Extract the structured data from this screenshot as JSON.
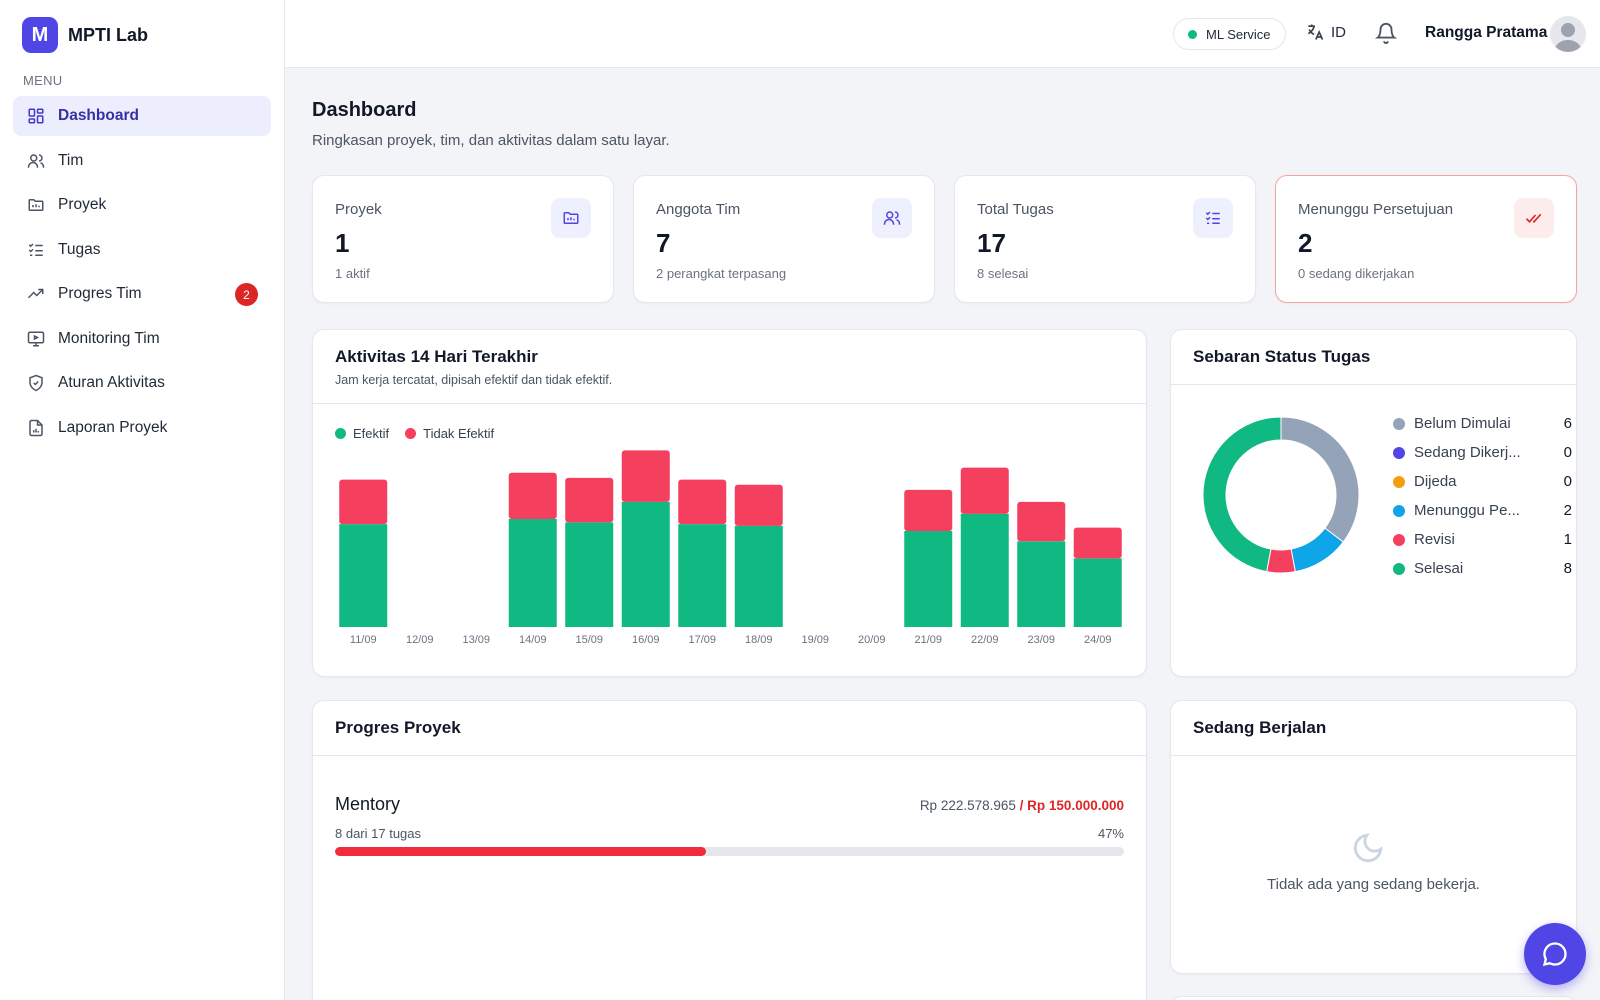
{
  "app": {
    "name": "MPTI Lab",
    "logo_letter": "M"
  },
  "sidebar": {
    "menu_label": "MENU",
    "items": [
      {
        "label": "Dashboard",
        "icon": "dashboard-grid-icon",
        "active": true
      },
      {
        "label": "Tim",
        "icon": "users-icon"
      },
      {
        "label": "Proyek",
        "icon": "folder-icon"
      },
      {
        "label": "Tugas",
        "icon": "checklist-icon"
      },
      {
        "label": "Progres Tim",
        "icon": "trending-up-icon",
        "badge": "2"
      },
      {
        "label": "Monitoring Tim",
        "icon": "monitor-icon"
      },
      {
        "label": "Aturan Aktivitas",
        "icon": "shield-check-icon"
      },
      {
        "label": "Laporan Proyek",
        "icon": "report-icon"
      }
    ]
  },
  "topbar": {
    "service_label": "ML Service",
    "service_status_color": "#10b981",
    "language": "ID",
    "user_name": "Rangga Pratama"
  },
  "page": {
    "title": "Dashboard",
    "subtitle": "Ringkasan proyek, tim, dan aktivitas dalam satu layar."
  },
  "stats": [
    {
      "label": "Proyek",
      "value": "1",
      "sub": "1 aktif",
      "icon": "folder-icon"
    },
    {
      "label": "Anggota Tim",
      "value": "7",
      "sub": "2 perangkat terpasang",
      "icon": "users-icon"
    },
    {
      "label": "Total Tugas",
      "value": "17",
      "sub": "8 selesai",
      "icon": "checklist-icon"
    },
    {
      "label": "Menunggu Persetujuan",
      "value": "2",
      "sub": "0 sedang dikerjakan",
      "icon": "double-check-icon"
    }
  ],
  "activity": {
    "title": "Aktivitas 14 Hari Terakhir",
    "subtitle": "Jam kerja tercatat, dipisah efektif dan tidak efektif.",
    "legend": [
      "Efektif",
      "Tidak Efektif"
    ],
    "colors": {
      "effective": "#10b981",
      "ineffective": "#f43f5e"
    }
  },
  "chart_data": {
    "type": "bar",
    "stacked": true,
    "categories": [
      "11/09",
      "12/09",
      "13/09",
      "14/09",
      "15/09",
      "16/09",
      "17/09",
      "18/09",
      "19/09",
      "20/09",
      "21/09",
      "22/09",
      "23/09",
      "24/09"
    ],
    "series": [
      {
        "name": "Efektif",
        "color": "#10b981",
        "values": [
          6.0,
          0,
          0,
          6.3,
          6.1,
          7.3,
          6.0,
          5.9,
          0,
          0,
          5.6,
          6.6,
          5.0,
          4.0
        ]
      },
      {
        "name": "Tidak Efektif",
        "color": "#f43f5e",
        "values": [
          2.6,
          0,
          0,
          2.7,
          2.6,
          3.0,
          2.6,
          2.4,
          0,
          0,
          2.4,
          2.7,
          2.3,
          1.8
        ]
      }
    ],
    "ylim": [
      0,
      10.5
    ],
    "grid": false,
    "legend_position": "top-left"
  },
  "status_distribution": {
    "title": "Sebaran Status Tugas",
    "items": [
      {
        "label": "Belum Dimulai",
        "display": "Belum Dimulai",
        "count": 6,
        "color": "#94a3b8"
      },
      {
        "label": "Sedang Dikerjakan",
        "display": "Sedang Dikerj...",
        "count": 0,
        "color": "#4f46e5"
      },
      {
        "label": "Dijeda",
        "display": "Dijeda",
        "count": 0,
        "color": "#f59e0b"
      },
      {
        "label": "Menunggu Persetujuan",
        "display": "Menunggu Pe...",
        "count": 2,
        "color": "#0ea5e9"
      },
      {
        "label": "Revisi",
        "display": "Revisi",
        "count": 1,
        "color": "#f43f5e"
      },
      {
        "label": "Selesai",
        "display": "Selesai",
        "count": 8,
        "color": "#10b981"
      }
    ]
  },
  "project_progress": {
    "title": "Progres Proyek",
    "projects": [
      {
        "name": "Mentory",
        "spent": "Rp 222.578.965",
        "separator": " / ",
        "budget": "Rp 150.000.000",
        "tasks": "8 dari 17 tugas",
        "percent_label": "47%",
        "percent": 47
      }
    ]
  },
  "running": {
    "title": "Sedang Berjalan",
    "empty_text": "Tidak ada yang sedang bekerja."
  }
}
